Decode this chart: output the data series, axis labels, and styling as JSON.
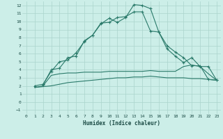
{
  "xlabel": "Humidex (Indice chaleur)",
  "xlim": [
    -0.5,
    23.5
  ],
  "ylim": [
    -1.5,
    12.5
  ],
  "xticks": [
    0,
    1,
    2,
    3,
    4,
    5,
    6,
    7,
    8,
    9,
    10,
    11,
    12,
    13,
    14,
    15,
    16,
    17,
    18,
    19,
    20,
    21,
    22,
    23
  ],
  "yticks": [
    -1,
    0,
    1,
    2,
    3,
    4,
    5,
    6,
    7,
    8,
    9,
    10,
    11,
    12
  ],
  "bg_color": "#cceee8",
  "line_color": "#2a7a6a",
  "grid_color": "#aad4cc",
  "line1_x": [
    1,
    2,
    3,
    4,
    5,
    6,
    7,
    8,
    9,
    10,
    11,
    12,
    13,
    14,
    15,
    16,
    17,
    18,
    19,
    20,
    21,
    22,
    23
  ],
  "line1_y": [
    2.0,
    2.2,
    3.8,
    5.0,
    5.2,
    6.1,
    7.5,
    8.3,
    9.7,
    10.4,
    9.9,
    10.5,
    12.1,
    12.0,
    11.6,
    8.7,
    7.0,
    6.2,
    5.5,
    4.5,
    4.5,
    2.8,
    2.7
  ],
  "line2_x": [
    2,
    3,
    4,
    5,
    6,
    7,
    8,
    9,
    10,
    11,
    12,
    13,
    14,
    15,
    16,
    17,
    18,
    19,
    20,
    21,
    22,
    23
  ],
  "line2_y": [
    2.1,
    4.0,
    4.2,
    5.5,
    5.7,
    7.6,
    8.3,
    9.8,
    9.9,
    10.5,
    10.6,
    11.2,
    11.2,
    8.8,
    8.7,
    6.6,
    5.7,
    4.9,
    5.5,
    4.4,
    4.4,
    2.7
  ],
  "line3_x": [
    1,
    2,
    3,
    4,
    5,
    6,
    7,
    8,
    9,
    10,
    11,
    12,
    13,
    14,
    15,
    16,
    17,
    18,
    19,
    20,
    21,
    22,
    23
  ],
  "line3_y": [
    1.8,
    2.0,
    3.3,
    3.5,
    3.6,
    3.6,
    3.7,
    3.7,
    3.7,
    3.8,
    3.8,
    3.8,
    3.8,
    3.8,
    3.9,
    3.8,
    3.8,
    3.8,
    4.4,
    4.6,
    4.4,
    3.5,
    2.7
  ],
  "line4_x": [
    1,
    2,
    3,
    4,
    5,
    6,
    7,
    8,
    9,
    10,
    11,
    12,
    13,
    14,
    15,
    16,
    17,
    18,
    19,
    20,
    21,
    22,
    23
  ],
  "line4_y": [
    1.8,
    1.9,
    2.0,
    2.2,
    2.4,
    2.5,
    2.6,
    2.7,
    2.8,
    2.9,
    3.0,
    3.0,
    3.1,
    3.1,
    3.2,
    3.1,
    3.0,
    3.0,
    3.0,
    2.9,
    2.9,
    2.8,
    2.7
  ]
}
